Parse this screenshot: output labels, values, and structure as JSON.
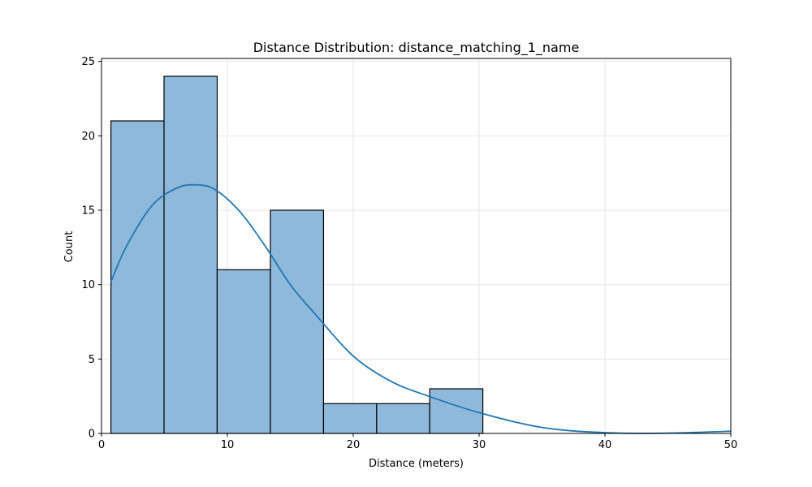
{
  "chart_data": {
    "type": "bar",
    "title": "Distance Distribution: distance_matching_1_name",
    "xlabel": "Distance (meters)",
    "ylabel": "Count",
    "xlim": [
      0,
      50
    ],
    "ylim": [
      0,
      25.2
    ],
    "xticks": [
      0,
      10,
      20,
      30,
      40,
      50
    ],
    "yticks": [
      0,
      5,
      10,
      15,
      20,
      25
    ],
    "grid": true,
    "bins": [
      {
        "x0": 0.75,
        "x1": 4.97,
        "count": 21
      },
      {
        "x0": 4.97,
        "x1": 9.19,
        "count": 24
      },
      {
        "x0": 9.19,
        "x1": 13.42,
        "count": 11
      },
      {
        "x0": 13.42,
        "x1": 17.64,
        "count": 15
      },
      {
        "x0": 17.64,
        "x1": 21.86,
        "count": 2
      },
      {
        "x0": 21.86,
        "x1": 26.08,
        "count": 2
      },
      {
        "x0": 26.08,
        "x1": 30.3,
        "count": 3
      }
    ],
    "kde": {
      "x": [
        0.75,
        2,
        4,
        6,
        7.5,
        9,
        11,
        13,
        15,
        17,
        20,
        23,
        26,
        30,
        35,
        40,
        45,
        50
      ],
      "y": [
        10.2,
        12.6,
        15.3,
        16.5,
        16.7,
        16.4,
        14.9,
        12.6,
        10.0,
        8.0,
        5.2,
        3.5,
        2.5,
        1.4,
        0.4,
        0.05,
        0.02,
        0.15
      ]
    },
    "colors": {
      "bar_fill": "#8fb9db",
      "bar_edge": "#000000",
      "kde_line": "#1f77b4",
      "grid": "#e6e6e6"
    }
  }
}
